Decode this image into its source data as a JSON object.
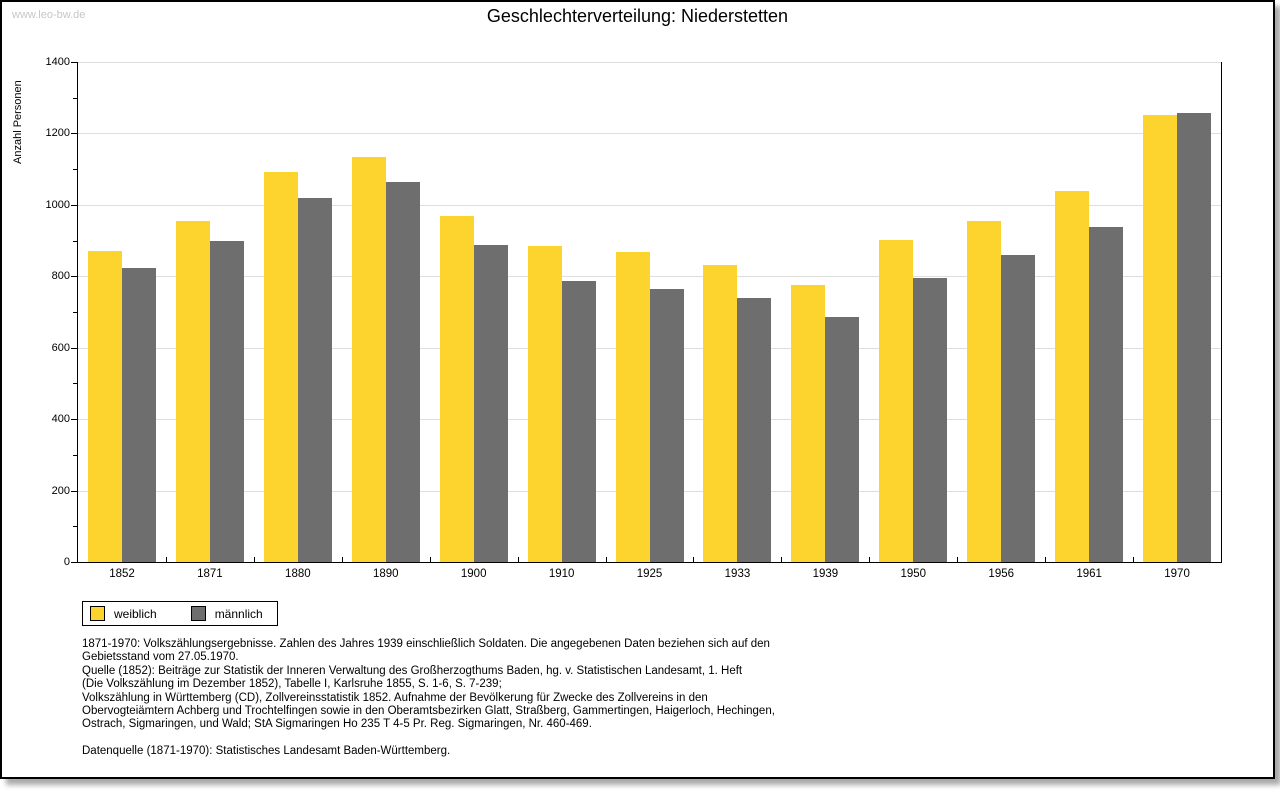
{
  "watermark": "www.leo-bw.de",
  "header": {
    "title": "Geschlechterverteilung: Niederstetten"
  },
  "chart_data": {
    "type": "bar",
    "title": "Geschlechterverteilung: Niederstetten",
    "xlabel": "",
    "ylabel": "Anzahl Personen",
    "ylim": [
      0,
      1400
    ],
    "y_major_ticks": [
      0,
      200,
      400,
      600,
      800,
      1000,
      1200,
      1400
    ],
    "y_minor_step": 100,
    "grid": "horizontal",
    "legend_position": "bottom-left",
    "categories": [
      "1852",
      "1871",
      "1880",
      "1890",
      "1900",
      "1910",
      "1925",
      "1933",
      "1939",
      "1950",
      "1956",
      "1961",
      "1970"
    ],
    "series": [
      {
        "name": "weiblich",
        "color": "#FCD42D",
        "values": [
          870,
          956,
          1091,
          1133,
          970,
          884,
          869,
          831,
          776,
          901,
          956,
          1038,
          1253
        ]
      },
      {
        "name": "männlich",
        "color": "#6E6E6E",
        "values": [
          823,
          900,
          1020,
          1063,
          889,
          787,
          764,
          738,
          685,
          794,
          861,
          938,
          1256
        ]
      }
    ]
  },
  "notes": {
    "lines": [
      "1871-1970: Volkszählungsergebnisse. Zahlen des Jahres 1939 einschließlich Soldaten. Die angegebenen Daten beziehen sich auf den",
      "Gebietsstand vom 27.05.1970.",
      "Quelle (1852): Beiträge zur Statistik der Inneren Verwaltung des Großherzogthums Baden, hg. v. Statistischen Landesamt, 1. Heft",
      "(Die Volkszählung im Dezember 1852), Tabelle I, Karlsruhe 1855, S. 1-6, S. 7-239;",
      "Volkszählung in Württemberg (CD), Zollvereinsstatistik 1852. Aufnahme der Bevölkerung für Zwecke des Zollvereins in den",
      "Obervogteiämtern Achberg und Trochtelfingen sowie in den Oberamtsbezirken Glatt, Straßberg, Gammertingen, Haigerloch, Hechingen,",
      "Ostrach, Sigmaringen, und Wald; StA Sigmaringen Ho 235 T 4-5 Pr. Reg. Sigmaringen, Nr. 460-469.",
      "Datenquelle (1871-1970): Statistisches Landesamt Baden-Württemberg."
    ]
  },
  "colors": {
    "female_bar": "#FCD42D",
    "male_bar": "#6E6E6E",
    "gridline": "#DEDEDE",
    "watermark": "#C6C6C6",
    "frame_border": "#000000"
  }
}
